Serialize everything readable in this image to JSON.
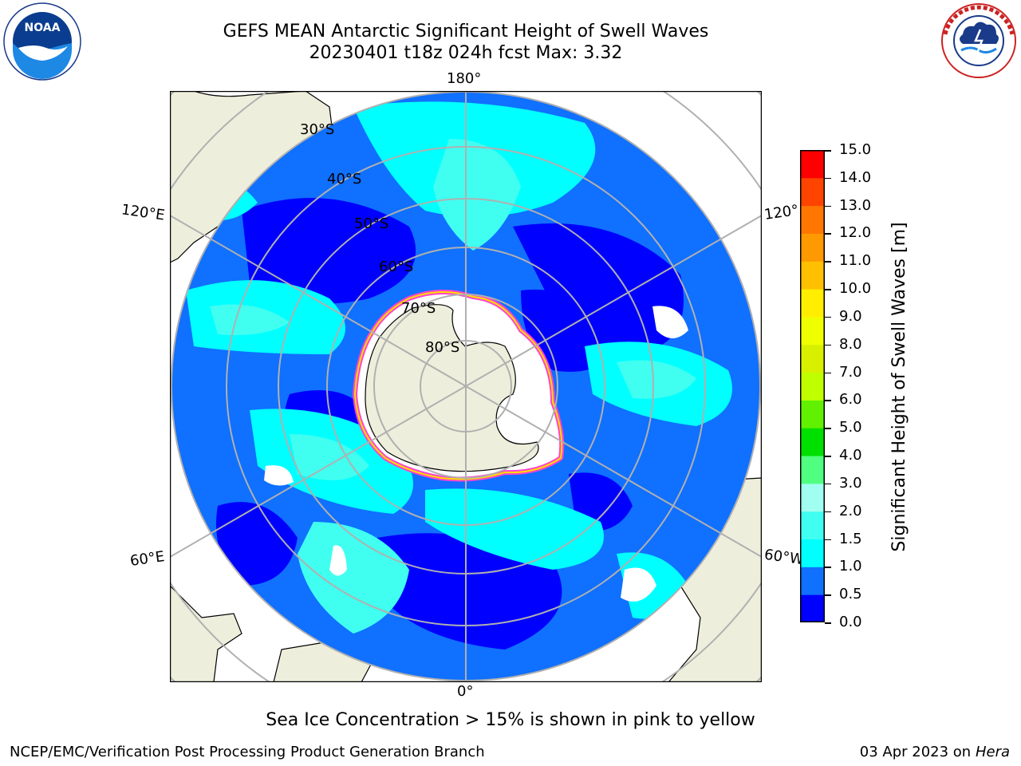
{
  "header": {
    "title_line1": "GEFS MEAN Antarctic Significant Height of Swell Waves",
    "title_line2": "20230401 t18z 024h fcst   Max: 3.32"
  },
  "logos": {
    "noaa_text": "NOAA",
    "noaa_ring_text": "NATIONAL OCEANIC AND ATMOSPHERIC ADMINISTRATION · U.S. DEPARTMENT OF COMMERCE",
    "nws_ring_text": "NATIONAL WEATHER SERVICE"
  },
  "map": {
    "projection": "south-polar-stereographic",
    "longitude_labels": {
      "top": "180°",
      "bottom": "0°",
      "upper_left": "120°E",
      "lower_left": "60°E",
      "upper_right": "120°",
      "lower_right": "60°W"
    },
    "latitude_labels": [
      "30°S",
      "40°S",
      "50°S",
      "60°S",
      "70°S",
      "80°S"
    ],
    "colors": {
      "land": "#eeeedc",
      "sea_ice_pink": "#ff44cc",
      "sea_ice_yellow": "#ffdd00",
      "gridline": "#b0b0b0"
    }
  },
  "colorbar": {
    "label": "Significant Height of Swell Waves [m]",
    "tick_labels": [
      "15.0",
      "14.0",
      "13.0",
      "12.0",
      "11.0",
      "10.0",
      "9.0",
      "8.0",
      "7.0",
      "6.0",
      "5.0",
      "4.0",
      "3.0",
      "2.0",
      "1.5",
      "1.0",
      "0.5",
      "0.0"
    ],
    "bins_bottom_to_top": [
      {
        "from": 0.0,
        "to": 0.5,
        "color": "#0000ff"
      },
      {
        "from": 0.5,
        "to": 1.0,
        "color": "#1070ff"
      },
      {
        "from": 1.0,
        "to": 1.5,
        "color": "#00ffff"
      },
      {
        "from": 1.5,
        "to": 2.0,
        "color": "#40fff0"
      },
      {
        "from": 2.0,
        "to": 3.0,
        "color": "#a0fff0"
      },
      {
        "from": 3.0,
        "to": 4.0,
        "color": "#50ff80"
      },
      {
        "from": 4.0,
        "to": 5.0,
        "color": "#00e000"
      },
      {
        "from": 5.0,
        "to": 6.0,
        "color": "#60f000"
      },
      {
        "from": 6.0,
        "to": 7.0,
        "color": "#c0ff00"
      },
      {
        "from": 7.0,
        "to": 8.0,
        "color": "#d8f000"
      },
      {
        "from": 8.0,
        "to": 9.0,
        "color": "#f0ff00"
      },
      {
        "from": 9.0,
        "to": 10.0,
        "color": "#ffee00"
      },
      {
        "from": 10.0,
        "to": 11.0,
        "color": "#ffc000"
      },
      {
        "from": 11.0,
        "to": 12.0,
        "color": "#ff9900"
      },
      {
        "from": 12.0,
        "to": 13.0,
        "color": "#ff7700"
      },
      {
        "from": 13.0,
        "to": 14.0,
        "color": "#ff4400"
      },
      {
        "from": 14.0,
        "to": 15.0,
        "color": "#ff0000"
      }
    ]
  },
  "notes": {
    "subtitle": "Sea Ice Concentration > 15% is shown in pink to yellow"
  },
  "footer": {
    "left": "NCEP/EMC/Verification Post Processing Product Generation Branch",
    "right_date": "03 Apr 2023 on ",
    "right_host": "Hera"
  }
}
